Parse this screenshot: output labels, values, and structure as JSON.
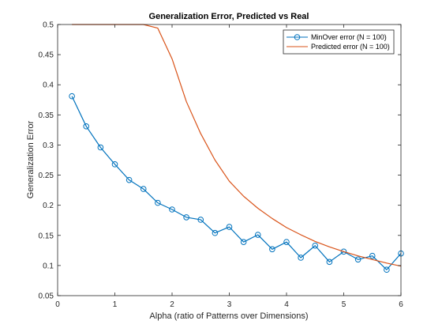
{
  "chart_data": {
    "type": "line",
    "title": "Generalization Error, Predicted vs Real",
    "xlabel": "Alpha (ratio of Patterns over Dimensions)",
    "ylabel": "Generalization Error",
    "xlim": [
      0,
      6
    ],
    "ylim": [
      0.05,
      0.5
    ],
    "xticks": [
      0,
      1,
      2,
      3,
      4,
      5,
      6
    ],
    "xtick_labels": [
      "0",
      "1",
      "2",
      "3",
      "4",
      "5",
      "6"
    ],
    "yticks": [
      0.05,
      0.1,
      0.15,
      0.2,
      0.25,
      0.3,
      0.35,
      0.4,
      0.45,
      0.5
    ],
    "ytick_labels": [
      "0.05",
      "0.1",
      "0.15",
      "0.2",
      "0.25",
      "0.3",
      "0.35",
      "0.4",
      "0.45",
      "0.5"
    ],
    "grid": false,
    "legend_position": "top-right",
    "series": [
      {
        "name": "MinOver error (N = 100)",
        "color": "#0072BD",
        "marker": "circle",
        "x": [
          0.25,
          0.5,
          0.75,
          1.0,
          1.25,
          1.5,
          1.75,
          2.0,
          2.25,
          2.5,
          2.75,
          3.0,
          3.25,
          3.5,
          3.75,
          4.0,
          4.25,
          4.5,
          4.75,
          5.0,
          5.25,
          5.5,
          5.75,
          6.0
        ],
        "y": [
          0.381,
          0.331,
          0.296,
          0.268,
          0.242,
          0.227,
          0.204,
          0.193,
          0.18,
          0.176,
          0.154,
          0.164,
          0.139,
          0.151,
          0.127,
          0.139,
          0.113,
          0.133,
          0.106,
          0.123,
          0.11,
          0.116,
          0.093,
          0.12
        ]
      },
      {
        "name": "Predicted error (N = 100)",
        "color": "#D95319",
        "marker": "none",
        "x": [
          0.25,
          0.5,
          0.75,
          1.0,
          1.25,
          1.5,
          1.75,
          2.0,
          2.25,
          2.5,
          2.75,
          3.0,
          3.25,
          3.5,
          3.75,
          4.0,
          4.25,
          4.5,
          4.75,
          5.0,
          5.25,
          5.5,
          5.75,
          6.0
        ],
        "y": [
          0.5,
          0.5,
          0.5,
          0.5,
          0.5,
          0.5,
          0.494,
          0.443,
          0.372,
          0.319,
          0.275,
          0.24,
          0.215,
          0.195,
          0.178,
          0.163,
          0.151,
          0.14,
          0.131,
          0.123,
          0.116,
          0.11,
          0.104,
          0.099
        ]
      }
    ]
  }
}
